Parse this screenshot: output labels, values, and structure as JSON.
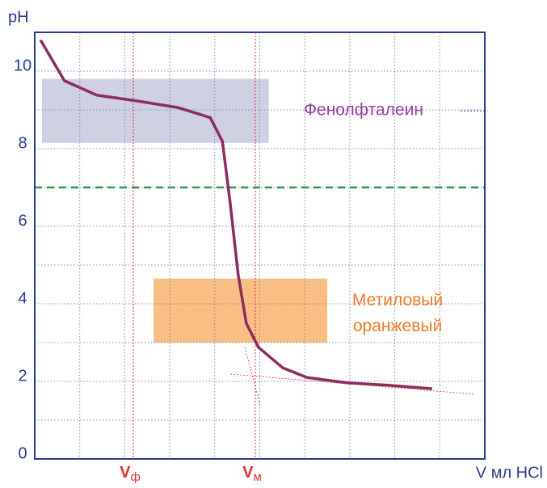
{
  "chart_data": {
    "type": "line",
    "ylabel": "pH",
    "xlabel": "V мл HCl",
    "xlim": [
      0,
      10
    ],
    "ylim": [
      0,
      11
    ],
    "yticks": [
      0,
      2,
      4,
      6,
      8,
      10
    ],
    "minor_yticks": [
      1,
      3,
      5,
      7,
      9
    ],
    "xgrid": [
      1,
      2,
      3,
      4,
      5,
      6,
      7,
      8,
      9
    ],
    "grid": true,
    "x": [
      0.13,
      0.66,
      1.38,
      2.28,
      3.18,
      3.9,
      4.17,
      4.34,
      4.52,
      4.7,
      4.97,
      5.51,
      6.05,
      6.95,
      7.85,
      8.83
    ],
    "series": [
      {
        "color": "#8b2d5e",
        "values": [
          10.8,
          9.75,
          9.38,
          9.23,
          9.06,
          8.8,
          8.19,
          6.63,
          4.75,
          3.5,
          2.88,
          2.35,
          2.1,
          1.96,
          1.9,
          1.81
        ]
      }
    ],
    "bands": [
      {
        "label_lines": [
          "Фенолфталеин"
        ],
        "xlim": [
          0.16,
          5.2
        ],
        "ylim": [
          8.15,
          9.8
        ],
        "color": "#c8c8e0",
        "text_color": "#93439a"
      },
      {
        "label_lines": [
          "Метиловый",
          "оранжевый"
        ],
        "xlim": [
          2.64,
          6.5
        ],
        "ylim": [
          3.0,
          4.65
        ],
        "color": "#f9b36e",
        "text_color": "#f07a28"
      }
    ],
    "vlines": [
      {
        "x": 2.19,
        "label": {
          "main": "V",
          "sub": "ф"
        },
        "color": "#e03030"
      },
      {
        "x": 4.9,
        "label": {
          "main": "V",
          "sub": "м"
        },
        "color": "#e03030"
      }
    ],
    "hline": {
      "y": 7,
      "color": "#2a9a4a"
    }
  }
}
